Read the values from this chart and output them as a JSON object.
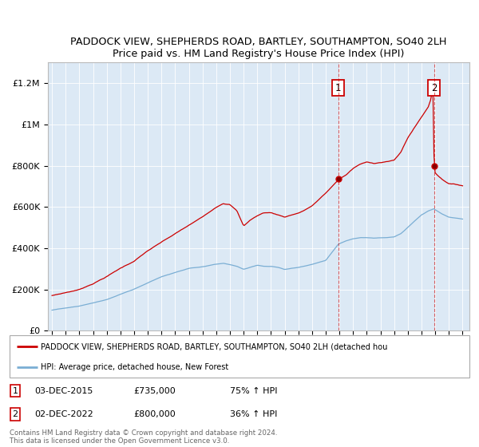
{
  "title": "PADDOCK VIEW, SHEPHERDS ROAD, BARTLEY, SOUTHAMPTON, SO40 2LH",
  "subtitle": "Price paid vs. HM Land Registry's House Price Index (HPI)",
  "ylim": [
    0,
    1300000
  ],
  "yticks": [
    0,
    200000,
    400000,
    600000,
    800000,
    1000000,
    1200000
  ],
  "ytick_labels": [
    "£0",
    "£200K",
    "£400K",
    "£600K",
    "£800K",
    "£1M",
    "£1.2M"
  ],
  "background_color": "#dce9f5",
  "red_color": "#cc0000",
  "blue_color": "#7aaed4",
  "sale1_date": "03-DEC-2015",
  "sale1_price": 735000,
  "sale1_pct": "75% ↑ HPI",
  "sale1_year": 2015.92,
  "sale2_date": "02-DEC-2022",
  "sale2_price": 800000,
  "sale2_pct": "36% ↑ HPI",
  "sale2_year": 2022.92,
  "legend_label_red": "PADDOCK VIEW, SHEPHERDS ROAD, BARTLEY, SOUTHAMPTON, SO40 2LH (detached hou",
  "legend_label_blue": "HPI: Average price, detached house, New Forest",
  "footer": "Contains HM Land Registry data © Crown copyright and database right 2024.\nThis data is licensed under the Open Government Licence v3.0."
}
